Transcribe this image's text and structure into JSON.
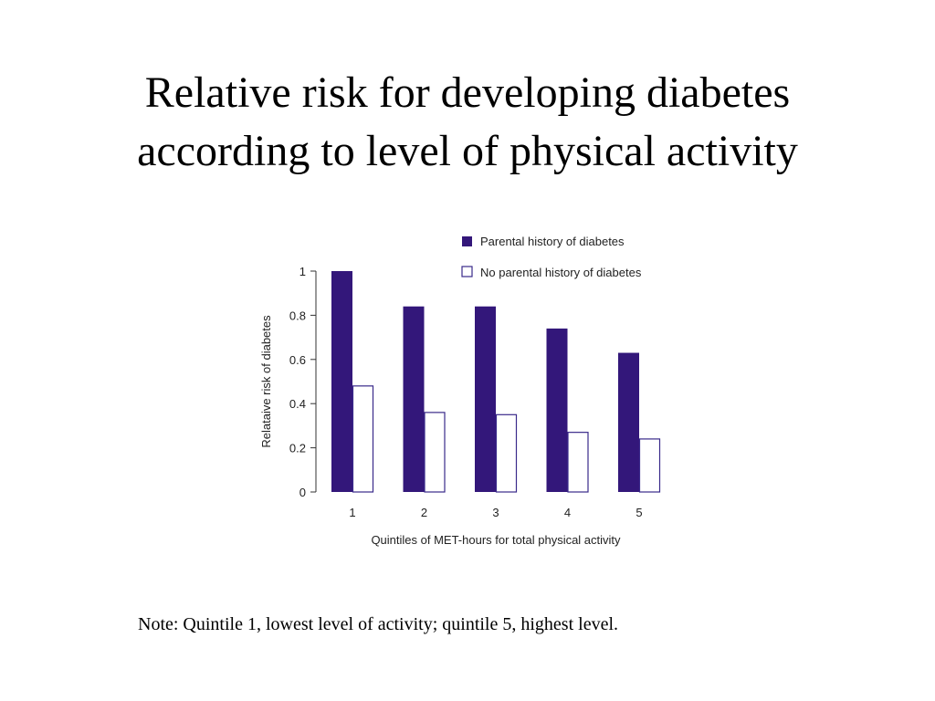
{
  "title": {
    "line1": "Relative risk for developing diabetes",
    "line2": "according to level of physical activity"
  },
  "note": "Note: Quintile 1, lowest level of activity; quintile 5, highest level.",
  "colors": {
    "parental": "#33177a",
    "no_parental_fill": "#ffffff",
    "no_parental_stroke": "#3a2a8a",
    "axis": "#333333"
  },
  "chart_data": {
    "type": "bar",
    "categories": [
      "1",
      "2",
      "3",
      "4",
      "5"
    ],
    "series": [
      {
        "name": "Parental history of diabetes",
        "values": [
          1.0,
          0.84,
          0.84,
          0.74,
          0.63
        ]
      },
      {
        "name": "No parental history of diabetes",
        "values": [
          0.48,
          0.36,
          0.35,
          0.27,
          0.24
        ]
      }
    ],
    "xlabel": "Quintiles of MET-hours for total physical activity",
    "ylabel": "Relataive risk of diabetes",
    "ylim": [
      0,
      1
    ],
    "yticks": [
      "0",
      "0.2",
      "0.4",
      "0.6",
      "0.8",
      "1"
    ],
    "grid": false,
    "legend": "top-right"
  }
}
